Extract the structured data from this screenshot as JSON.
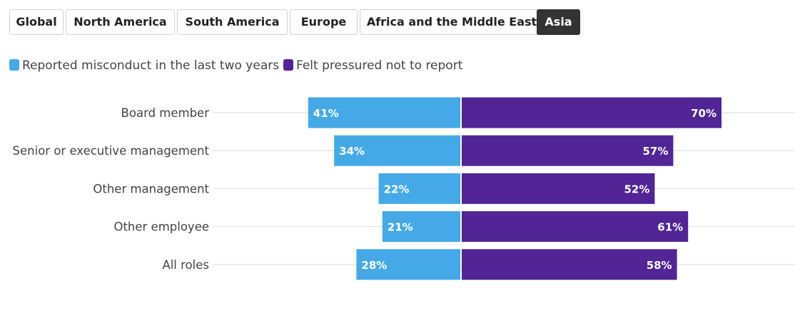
{
  "tabs": [
    {
      "label": "Global",
      "active": false
    },
    {
      "label": "North America",
      "active": false
    },
    {
      "label": "South America",
      "active": false
    },
    {
      "label": "Europe",
      "active": false
    },
    {
      "label": "Africa and the Middle East",
      "active": false
    },
    {
      "label": "Asia",
      "active": true
    }
  ],
  "legend": [
    {
      "label": "Reported misconduct in the last two years",
      "color": "#45a9e8"
    },
    {
      "label": "Felt pressured not to report",
      "color": "#512595"
    }
  ],
  "chart_data": {
    "type": "bar",
    "orientation": "horizontal-diverging",
    "categories": [
      "Board member",
      "Senior or executive management",
      "Other management",
      "Other employee",
      "All roles"
    ],
    "series": [
      {
        "name": "Reported misconduct in the last two years",
        "color": "#45a9e8",
        "direction": "left",
        "values": [
          41,
          34,
          22,
          21,
          28
        ],
        "labels": [
          "41%",
          "34%",
          "22%",
          "21%",
          "28%"
        ]
      },
      {
        "name": "Felt pressured not to report",
        "color": "#512595",
        "direction": "right",
        "values": [
          70,
          57,
          52,
          61,
          58
        ],
        "labels": [
          "70%",
          "57%",
          "52%",
          "61%",
          "58%"
        ]
      }
    ],
    "unit": "%",
    "xlim": [
      0,
      100
    ]
  }
}
